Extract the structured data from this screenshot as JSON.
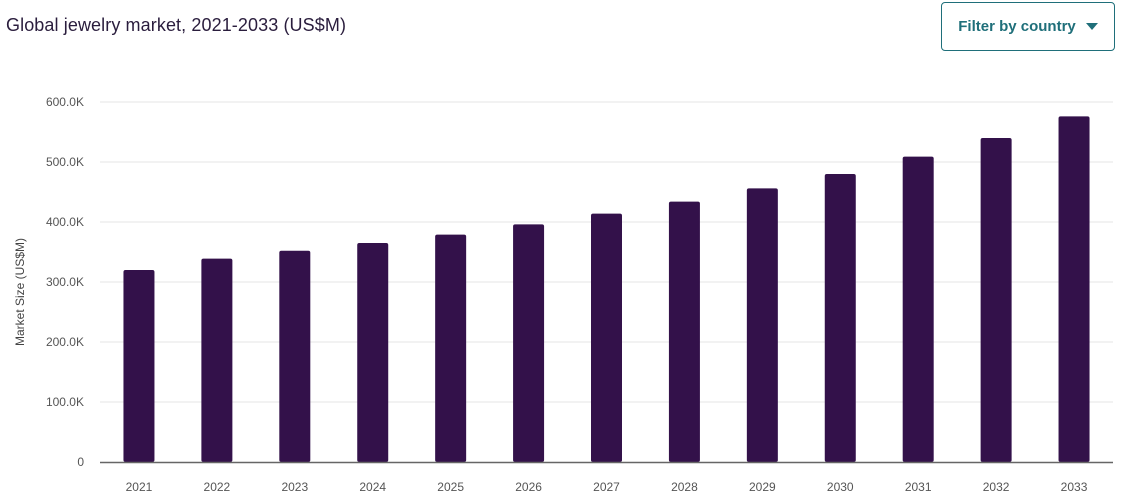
{
  "header": {
    "filter_label": "Filter by country"
  },
  "colors": {
    "bar": "#33114a",
    "grid": "#e6e6e6",
    "axis": "#666666",
    "accent": "#1f6f7a"
  },
  "chart_data": {
    "type": "bar",
    "title": "Global jewelry market, 2021-2033 (US$M)",
    "xlabel": "",
    "ylabel": "Market Size (US$M)",
    "categories": [
      "2021",
      "2022",
      "2023",
      "2024",
      "2025",
      "2026",
      "2027",
      "2028",
      "2029",
      "2030",
      "2031",
      "2032",
      "2033"
    ],
    "values": [
      320000,
      339000,
      352000,
      365000,
      379000,
      396000,
      414000,
      434000,
      456000,
      480000,
      509000,
      540000,
      576000
    ],
    "ylim": [
      0,
      600000
    ],
    "yticks": [
      0,
      100000,
      200000,
      300000,
      400000,
      500000,
      600000
    ],
    "ytick_labels": [
      "0",
      "100.0K",
      "200.0K",
      "300.0K",
      "400.0K",
      "500.0K",
      "600.0K"
    ],
    "grid": true,
    "legend": "none"
  }
}
